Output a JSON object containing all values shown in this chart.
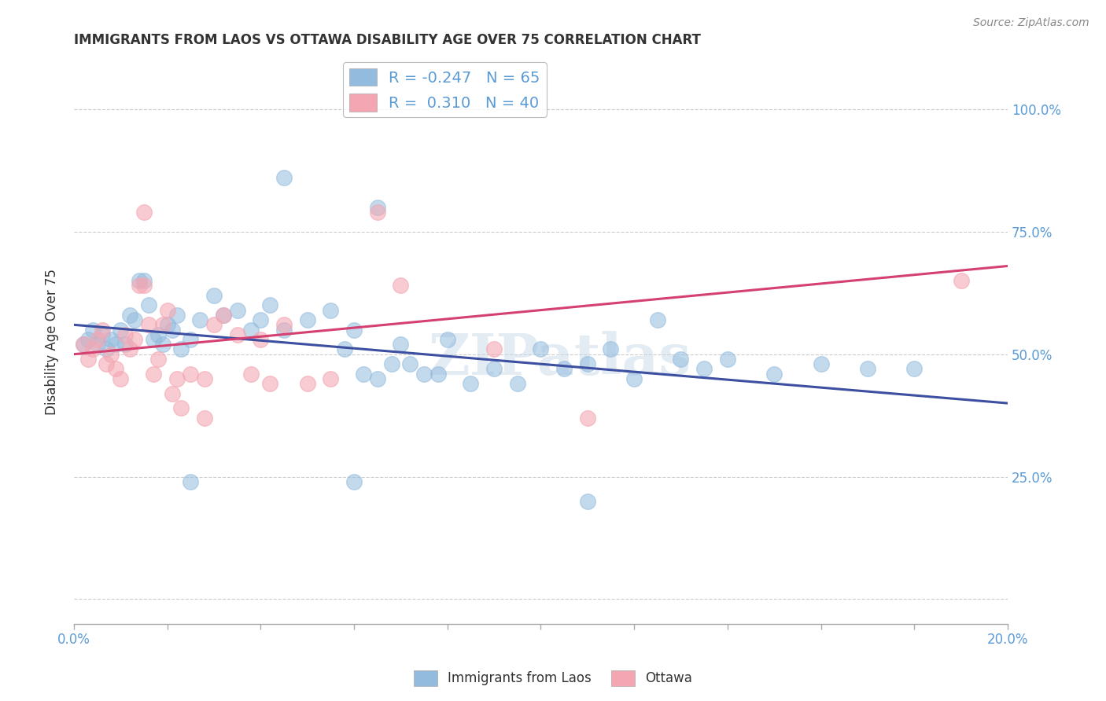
{
  "title": "IMMIGRANTS FROM LAOS VS OTTAWA DISABILITY AGE OVER 75 CORRELATION CHART",
  "source": "Source: ZipAtlas.com",
  "ylabel": "Disability Age Over 75",
  "ytick_labels": [
    "",
    "25.0%",
    "50.0%",
    "75.0%",
    "100.0%"
  ],
  "ytick_positions": [
    0,
    25,
    50,
    75,
    100
  ],
  "xlim": [
    0,
    20
  ],
  "ylim": [
    -5,
    110
  ],
  "blue_scatter": [
    [
      0.2,
      52
    ],
    [
      0.3,
      53
    ],
    [
      0.4,
      55
    ],
    [
      0.5,
      52
    ],
    [
      0.6,
      54
    ],
    [
      0.7,
      51
    ],
    [
      0.8,
      53
    ],
    [
      0.9,
      52
    ],
    [
      1.0,
      55
    ],
    [
      1.1,
      52
    ],
    [
      1.2,
      58
    ],
    [
      1.3,
      57
    ],
    [
      1.4,
      65
    ],
    [
      1.5,
      65
    ],
    [
      1.6,
      60
    ],
    [
      1.7,
      53
    ],
    [
      1.8,
      54
    ],
    [
      1.9,
      52
    ],
    [
      2.0,
      56
    ],
    [
      2.1,
      55
    ],
    [
      2.2,
      58
    ],
    [
      2.3,
      51
    ],
    [
      2.5,
      53
    ],
    [
      2.7,
      57
    ],
    [
      3.0,
      62
    ],
    [
      3.2,
      58
    ],
    [
      3.5,
      59
    ],
    [
      3.8,
      55
    ],
    [
      4.0,
      57
    ],
    [
      4.2,
      60
    ],
    [
      4.5,
      55
    ],
    [
      5.0,
      57
    ],
    [
      5.5,
      59
    ],
    [
      5.8,
      51
    ],
    [
      6.0,
      55
    ],
    [
      6.2,
      46
    ],
    [
      6.5,
      45
    ],
    [
      6.8,
      48
    ],
    [
      7.0,
      52
    ],
    [
      7.2,
      48
    ],
    [
      7.5,
      46
    ],
    [
      7.8,
      46
    ],
    [
      8.0,
      53
    ],
    [
      8.5,
      44
    ],
    [
      9.0,
      47
    ],
    [
      9.5,
      44
    ],
    [
      10.0,
      51
    ],
    [
      10.5,
      47
    ],
    [
      11.0,
      48
    ],
    [
      11.5,
      51
    ],
    [
      12.0,
      45
    ],
    [
      12.5,
      57
    ],
    [
      13.0,
      49
    ],
    [
      4.5,
      86
    ],
    [
      6.5,
      80
    ],
    [
      13.5,
      47
    ],
    [
      14.0,
      49
    ],
    [
      15.0,
      46
    ],
    [
      16.0,
      48
    ],
    [
      17.0,
      47
    ],
    [
      18.0,
      47
    ],
    [
      11.0,
      20
    ],
    [
      6.0,
      24
    ],
    [
      2.5,
      24
    ]
  ],
  "pink_scatter": [
    [
      0.2,
      52
    ],
    [
      0.3,
      49
    ],
    [
      0.4,
      51
    ],
    [
      0.5,
      53
    ],
    [
      0.6,
      55
    ],
    [
      0.7,
      48
    ],
    [
      0.8,
      50
    ],
    [
      0.9,
      47
    ],
    [
      1.0,
      45
    ],
    [
      1.1,
      54
    ],
    [
      1.2,
      51
    ],
    [
      1.3,
      53
    ],
    [
      1.4,
      64
    ],
    [
      1.5,
      64
    ],
    [
      1.6,
      56
    ],
    [
      1.7,
      46
    ],
    [
      1.8,
      49
    ],
    [
      1.9,
      56
    ],
    [
      2.0,
      59
    ],
    [
      2.1,
      42
    ],
    [
      2.2,
      45
    ],
    [
      2.5,
      46
    ],
    [
      2.8,
      45
    ],
    [
      3.0,
      56
    ],
    [
      3.2,
      58
    ],
    [
      3.5,
      54
    ],
    [
      3.8,
      46
    ],
    [
      4.0,
      53
    ],
    [
      4.2,
      44
    ],
    [
      4.5,
      56
    ],
    [
      5.0,
      44
    ],
    [
      5.5,
      45
    ],
    [
      6.5,
      79
    ],
    [
      7.0,
      64
    ],
    [
      1.5,
      79
    ],
    [
      19.0,
      65
    ],
    [
      11.0,
      37
    ],
    [
      2.3,
      39
    ],
    [
      9.0,
      51
    ],
    [
      2.8,
      37
    ]
  ],
  "blue_line": [
    [
      0,
      56.0
    ],
    [
      20,
      40.0
    ]
  ],
  "pink_line": [
    [
      0,
      50.0
    ],
    [
      20,
      68.0
    ]
  ],
  "blue_color": "#92bbde",
  "pink_color": "#f4a7b3",
  "blue_line_color": "#3c4fa0",
  "pink_line_color": "#d44070",
  "watermark": "ZIPatlas",
  "background_color": "#ffffff",
  "grid_color": "#cccccc",
  "title_color": "#333333",
  "right_axis_color": "#5b9bd5",
  "legend_text_color": "#5b9bd5",
  "x_tick_positions": [
    0,
    2,
    4,
    6,
    8,
    10,
    12,
    14,
    16,
    18,
    20
  ]
}
